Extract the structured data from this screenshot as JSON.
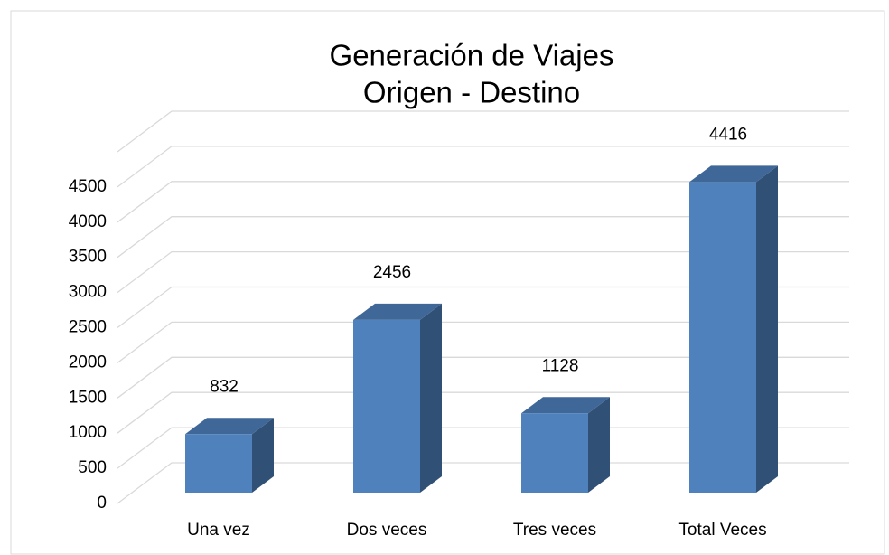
{
  "chart_data": {
    "type": "bar3d",
    "title": [
      "Generación de Viajes",
      "Origen - Destino"
    ],
    "categories": [
      "Una vez",
      "Dos veces",
      "Tres veces",
      "Total Veces"
    ],
    "values": [
      832,
      2456,
      1128,
      4416
    ],
    "color": "#4f81bd",
    "ylim": [
      0,
      5000
    ],
    "yticks": [
      0,
      500,
      1000,
      1500,
      2000,
      2500,
      3000,
      3500,
      4000,
      4500
    ],
    "grid": true
  }
}
